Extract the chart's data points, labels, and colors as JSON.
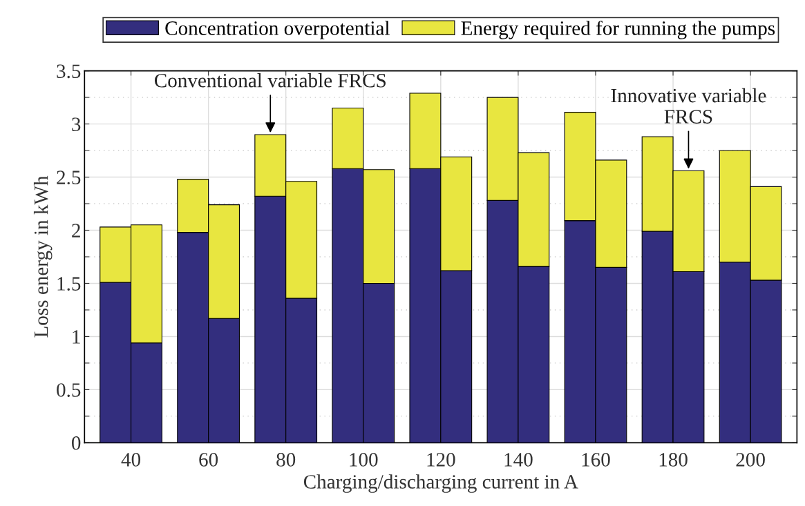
{
  "chart_data": [
    {
      "type": "bar",
      "stacked": true,
      "xlabel": "Charging/discharging current in A",
      "ylabel": "Loss energy in kWh",
      "categories": [
        "40",
        "60",
        "80",
        "100",
        "120",
        "140",
        "160",
        "180",
        "200"
      ],
      "series": [
        {
          "name": "Concentration overpotential",
          "color": "#332e7e",
          "values": [
            1.51,
            1.98,
            2.32,
            2.58,
            2.58,
            2.28,
            2.09,
            1.99,
            1.7
          ]
        },
        {
          "name": "Energy required for running the pumps",
          "color": "#e8e640",
          "values": [
            0.52,
            0.5,
            0.58,
            0.57,
            0.71,
            0.97,
            1.02,
            0.89,
            1.05
          ]
        }
      ],
      "ylim": [
        0,
        3.5
      ],
      "yticks": [
        0,
        {
          "value": 0.25,
          "label": null
        },
        0.5,
        {
          "value": 0.75,
          "label": null
        },
        1,
        {
          "value": 1.25,
          "label": null
        },
        1.5,
        {
          "value": 1.75,
          "label": null
        },
        2,
        {
          "value": 2.25,
          "label": null
        },
        2.5,
        {
          "value": 2.75,
          "label": null
        },
        3,
        {
          "value": 3.25,
          "label": null
        },
        3.5
      ],
      "grid": true,
      "legend": "top",
      "annotations": [
        {
          "text": "Conventional variable FRCS",
          "x": "80",
          "y": 2.9
        }
      ]
    },
    {
      "type": "bar",
      "stacked": true,
      "categories": [
        "40",
        "60",
        "80",
        "100",
        "120",
        "140",
        "160",
        "180",
        "200"
      ],
      "series": [
        {
          "color": "#332e7e",
          "values": [
            0.94,
            1.17,
            1.36,
            1.5,
            1.62,
            1.66,
            1.65,
            1.61,
            1.53
          ]
        },
        {
          "color": "#e8e640",
          "values": [
            1.11,
            1.07,
            1.1,
            1.07,
            1.07,
            1.07,
            1.01,
            0.95,
            0.88
          ]
        }
      ],
      "ylim": [
        0,
        3.5
      ],
      "tick_labels": false,
      "annotations": [
        {
          "text": "Innovative variable\nFRCS",
          "x": "180",
          "y": 2.56
        }
      ]
    }
  ]
}
